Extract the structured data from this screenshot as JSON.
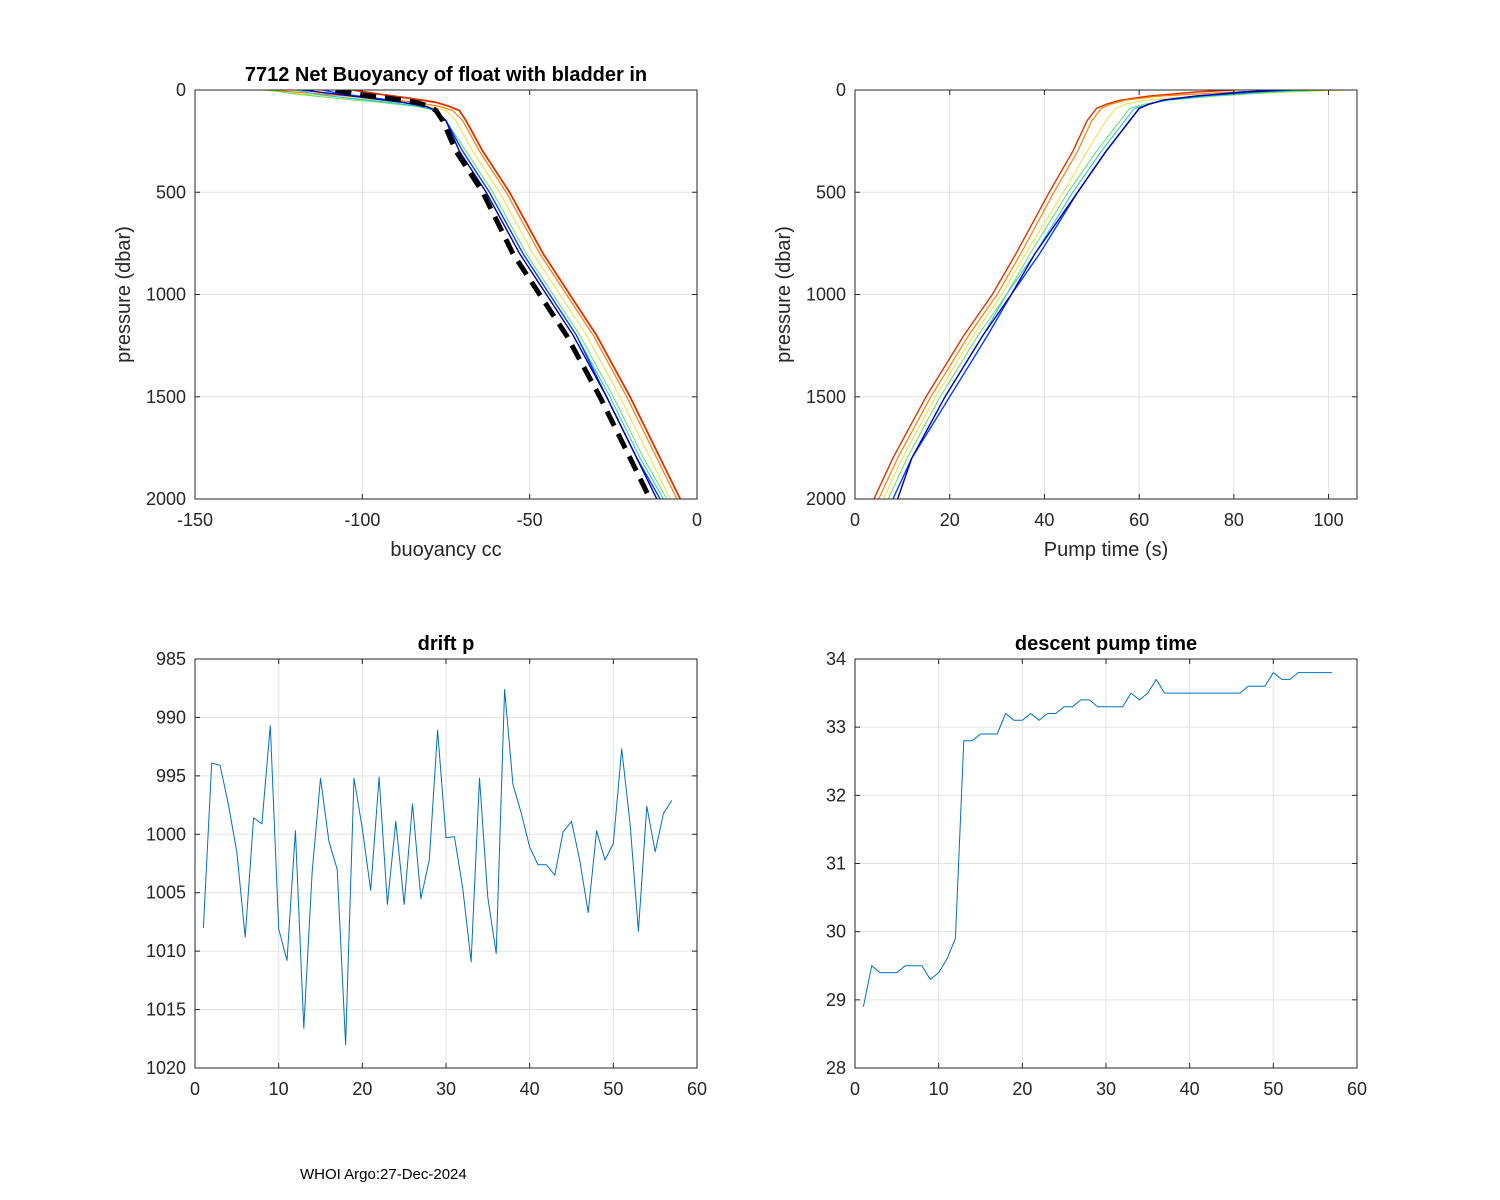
{
  "footer": "WHOI Argo:27-Dec-2024",
  "chart_data": [
    {
      "id": "buoyancy",
      "type": "line",
      "title": "7712 Net Buoyancy of float with bladder in",
      "xlabel": "buoyancy cc",
      "ylabel": "pressure (dbar)",
      "xlim": [
        -150,
        0
      ],
      "ylim": [
        0,
        2000
      ],
      "y_reversed": true,
      "xticks": [
        -150,
        -100,
        -50,
        0
      ],
      "yticks": [
        0,
        500,
        1000,
        1500,
        2000
      ],
      "grid": true,
      "profile_count": 57,
      "colormap": "jet",
      "pressure": [
        0,
        20,
        40,
        60,
        80,
        100,
        150,
        300,
        500,
        800,
        1000,
        1200,
        1500,
        1800,
        2000
      ],
      "series": [
        {
          "name": "profile 1 (red)",
          "color": "#e03000",
          "width": 1.8,
          "values": [
            -103,
            -95,
            -86,
            -78,
            -74,
            -71,
            -69,
            -64,
            -56,
            -46,
            -38,
            -30,
            -20,
            -11,
            -5
          ]
        },
        {
          "name": "profile (orange)",
          "color": "#ff8000",
          "width": 1.2,
          "values": [
            -128,
            -112,
            -96,
            -84,
            -77,
            -73,
            -70,
            -65,
            -57,
            -47,
            -39,
            -31,
            -21,
            -12,
            -6
          ]
        },
        {
          "name": "profile (yellow)",
          "color": "#f0e040",
          "width": 1.0,
          "values": [
            -130,
            -118,
            -102,
            -88,
            -80,
            -75,
            -72,
            -67,
            -59,
            -49,
            -41,
            -33,
            -23,
            -14,
            -8
          ]
        },
        {
          "name": "profile (green)",
          "color": "#60e060",
          "width": 1.0,
          "values": [
            -128,
            -120,
            -108,
            -95,
            -84,
            -78,
            -75,
            -69,
            -61,
            -51,
            -43,
            -35,
            -25,
            -16,
            -9
          ]
        },
        {
          "name": "profile (cyan)",
          "color": "#20c0e0",
          "width": 1.0,
          "values": [
            -120,
            -114,
            -104,
            -92,
            -83,
            -78,
            -75,
            -70,
            -62,
            -52,
            -44,
            -36,
            -26,
            -17,
            -10
          ]
        },
        {
          "name": "profile (blue)",
          "color": "#0040ff",
          "width": 1.4,
          "values": [
            -112,
            -106,
            -96,
            -88,
            -81,
            -78,
            -75,
            -70,
            -62,
            -52,
            -44,
            -36,
            -27,
            -18,
            -11
          ]
        },
        {
          "name": "profile (dark blue)",
          "color": "#0000b0",
          "width": 1.4,
          "values": [
            -118,
            -108,
            -98,
            -88,
            -81,
            -78,
            -75,
            -71,
            -63,
            -53,
            -45,
            -37,
            -27,
            -18,
            -12
          ]
        },
        {
          "name": "mean",
          "color": "#000000",
          "width": 5,
          "dash": "16,9",
          "values": [
            -108,
            -102,
            -92,
            -84,
            -80,
            -78,
            -76,
            -72,
            -64,
            -55,
            -47,
            -39,
            -29,
            -20,
            -14
          ]
        }
      ]
    },
    {
      "id": "pumptime",
      "type": "line",
      "title": "",
      "xlabel": "Pump time (s)",
      "ylabel": "pressure (dbar)",
      "xlim": [
        0,
        106
      ],
      "ylim": [
        0,
        2000
      ],
      "y_reversed": true,
      "xticks": [
        0,
        20,
        40,
        60,
        80,
        100
      ],
      "yticks": [
        0,
        500,
        1000,
        1500,
        2000
      ],
      "grid": true,
      "pressure": [
        0,
        10,
        30,
        50,
        70,
        90,
        150,
        300,
        500,
        800,
        1000,
        1200,
        1500,
        1800,
        2000
      ],
      "series": [
        {
          "name": "profile (red)",
          "color": "#e03000",
          "width": 1.4,
          "values": [
            80,
            72,
            62,
            56,
            53,
            51,
            49,
            46,
            41,
            34,
            29,
            23,
            15,
            8,
            4
          ]
        },
        {
          "name": "profile (orange)",
          "color": "#ff8000",
          "width": 1.2,
          "values": [
            95,
            80,
            64,
            57,
            54,
            52,
            50,
            47,
            42,
            35,
            30,
            24,
            16,
            9,
            5
          ]
        },
        {
          "name": "profile (yellow)",
          "color": "#f0e040",
          "width": 1.0,
          "values": [
            104,
            92,
            72,
            61,
            57,
            55,
            53,
            49,
            44,
            36,
            31,
            25,
            17,
            10,
            6
          ]
        },
        {
          "name": "profile (green)",
          "color": "#60e060",
          "width": 1.0,
          "values": [
            100,
            90,
            76,
            66,
            61,
            58,
            56,
            51,
            45,
            37,
            32,
            26,
            18,
            11,
            7
          ]
        },
        {
          "name": "profile (cyan)",
          "color": "#20c0e0",
          "width": 1.0,
          "values": [
            96,
            86,
            74,
            66,
            62,
            59,
            57,
            52,
            46,
            38,
            32,
            27,
            19,
            12,
            8
          ]
        },
        {
          "name": "profile (blue)",
          "color": "#0040ff",
          "width": 1.4,
          "values": [
            92,
            84,
            72,
            65,
            62,
            60,
            58,
            53,
            47,
            39,
            33,
            28,
            20,
            12,
            8
          ]
        },
        {
          "name": "profile (dark blue)",
          "color": "#0000b0",
          "width": 1.4,
          "values": [
            90,
            82,
            72,
            65,
            62,
            60,
            58,
            53,
            47,
            38,
            33,
            27,
            19,
            12,
            9
          ]
        }
      ]
    },
    {
      "id": "driftp",
      "type": "line",
      "title": "drift p",
      "xlabel": "",
      "ylabel": "",
      "xlim": [
        0,
        60
      ],
      "ylim": [
        985,
        1020
      ],
      "y_reversed": true,
      "xticks": [
        0,
        10,
        20,
        30,
        40,
        50,
        60
      ],
      "yticks": [
        985,
        990,
        995,
        1000,
        1005,
        1010,
        1015,
        1020
      ],
      "grid": true,
      "series": [
        {
          "name": "drift pressure",
          "color": "#0072bd",
          "width": 1.0,
          "x": [
            1,
            2,
            3,
            4,
            5,
            6,
            7,
            8,
            9,
            10,
            11,
            12,
            13,
            14,
            15,
            16,
            17,
            18,
            19,
            20,
            21,
            22,
            23,
            24,
            25,
            26,
            27,
            28,
            29,
            30,
            31,
            32,
            33,
            34,
            35,
            36,
            37,
            38,
            39,
            40,
            41,
            42,
            43,
            44,
            45,
            46,
            47,
            48,
            49,
            50,
            51,
            52,
            53,
            54,
            55,
            56,
            57
          ],
          "y": [
            1008,
            993.9,
            994.1,
            997.5,
            1001.5,
            1008.8,
            998.6,
            999.1,
            990.7,
            1008.1,
            1010.8,
            999.7,
            1016.6,
            1003.3,
            995.2,
            1000.6,
            1003,
            1018,
            995.2,
            999.5,
            1004.8,
            995.1,
            1006,
            998.9,
            1006,
            997.4,
            1005.5,
            1002.2,
            991.1,
            1000.3,
            1000.2,
            1004.6,
            1010.9,
            995.2,
            1005.4,
            1010.2,
            987.6,
            995.7,
            998.2,
            1001.1,
            1002.6,
            1002.6,
            1003.5,
            999.8,
            998.9,
            1002.3,
            1006.7,
            999.7,
            1002.2,
            1000.8,
            992.7,
            999.1,
            1008.3,
            997.6,
            1001.5,
            998.2,
            997.1
          ]
        }
      ]
    },
    {
      "id": "descentpump",
      "type": "line",
      "title": "descent pump time",
      "xlabel": "",
      "ylabel": "",
      "xlim": [
        0,
        60
      ],
      "ylim": [
        28,
        34
      ],
      "y_reversed": false,
      "xticks": [
        0,
        10,
        20,
        30,
        40,
        50,
        60
      ],
      "yticks": [
        28,
        29,
        30,
        31,
        32,
        33,
        34
      ],
      "grid": true,
      "series": [
        {
          "name": "descent pump time",
          "color": "#0072bd",
          "width": 1.0,
          "x": [
            1,
            2,
            3,
            4,
            5,
            6,
            7,
            8,
            9,
            10,
            11,
            12,
            13,
            14,
            15,
            16,
            17,
            18,
            19,
            20,
            21,
            22,
            23,
            24,
            25,
            26,
            27,
            28,
            29,
            30,
            31,
            32,
            33,
            34,
            35,
            36,
            37,
            38,
            39,
            40,
            41,
            42,
            43,
            44,
            45,
            46,
            47,
            48,
            49,
            50,
            51,
            52,
            53,
            54,
            55,
            56,
            57
          ],
          "y": [
            28.9,
            29.5,
            29.4,
            29.4,
            29.4,
            29.5,
            29.5,
            29.5,
            29.3,
            29.4,
            29.6,
            29.9,
            32.8,
            32.8,
            32.9,
            32.9,
            32.9,
            33.2,
            33.1,
            33.1,
            33.2,
            33.1,
            33.2,
            33.2,
            33.3,
            33.3,
            33.4,
            33.4,
            33.3,
            33.3,
            33.3,
            33.3,
            33.5,
            33.4,
            33.5,
            33.7,
            33.5,
            33.5,
            33.5,
            33.5,
            33.5,
            33.5,
            33.5,
            33.5,
            33.5,
            33.5,
            33.6,
            33.6,
            33.6,
            33.8,
            33.7,
            33.7,
            33.8,
            33.8,
            33.8,
            33.8,
            33.8
          ]
        }
      ]
    }
  ]
}
